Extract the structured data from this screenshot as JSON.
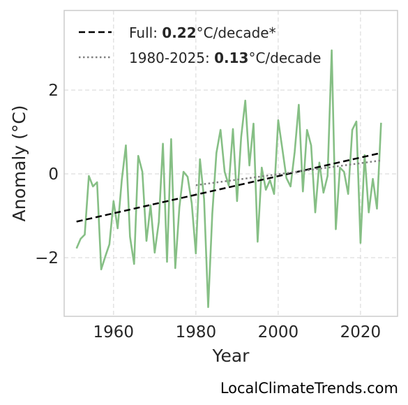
{
  "chart_data": {
    "type": "line",
    "xlabel": "Year",
    "ylabel": "Anomaly (°C)",
    "xlim": [
      1948,
      2029
    ],
    "ylim": [
      -3.4,
      3.9
    ],
    "xticks": [
      1960,
      1980,
      2000,
      2020
    ],
    "yticks": [
      -2,
      0,
      2
    ],
    "ytick_labels": [
      "−2",
      "0",
      "2"
    ],
    "grid": true,
    "legend_position": "top-left",
    "series": [
      {
        "x": [
          1951,
          1952,
          1953,
          1954,
          1955,
          1956,
          1957,
          1958,
          1959,
          1960,
          1961,
          1962,
          1963,
          1964,
          1965,
          1966,
          1967,
          1968,
          1969,
          1970,
          1971,
          1972,
          1973,
          1974,
          1975,
          1976,
          1977,
          1978,
          1979,
          1980,
          1981,
          1982,
          1983,
          1984,
          1985,
          1986,
          1987,
          1988,
          1989,
          1990,
          1991,
          1992,
          1993,
          1994,
          1995,
          1996,
          1997,
          1998,
          1999,
          2000,
          2001,
          2002,
          2003,
          2004,
          2005,
          2006,
          2007,
          2008,
          2009,
          2010,
          2011,
          2012,
          2013,
          2014,
          2015,
          2016,
          2017,
          2018,
          2019,
          2020,
          2021,
          2022,
          2023,
          2024,
          2025
        ],
        "values": [
          -1.78,
          -1.55,
          -1.45,
          -0.05,
          -0.3,
          -0.2,
          -2.28,
          -1.97,
          -1.68,
          -0.65,
          -1.3,
          -0.15,
          0.68,
          -1.5,
          -2.15,
          0.43,
          0.05,
          -1.6,
          -0.75,
          -1.88,
          -1.15,
          0.72,
          -2.1,
          0.83,
          -2.25,
          -0.8,
          0.05,
          -0.07,
          -0.7,
          -1.9,
          0.35,
          -0.6,
          -3.18,
          -0.95,
          0.5,
          1.05,
          0.05,
          -0.28,
          1.07,
          -0.65,
          0.88,
          1.75,
          0.2,
          1.2,
          -1.62,
          0.15,
          -0.38,
          -0.15,
          -0.48,
          1.28,
          0.6,
          -0.1,
          -0.3,
          0.52,
          1.65,
          -0.42,
          1.05,
          0.68,
          -0.92,
          0.27,
          -0.45,
          -0.05,
          2.95,
          -1.32,
          0.15,
          0.05,
          -0.48,
          1.05,
          1.25,
          -1.65,
          0.45,
          -0.92,
          -0.12,
          -0.83,
          1.22
        ],
        "color": "#86bf85"
      }
    ],
    "trend_lines": [
      {
        "label_prefix": "Full: ",
        "label_value": "0.22",
        "label_suffix": "°C/decade*",
        "x": [
          1951,
          2025
        ],
        "y": [
          -1.14,
          0.5
        ],
        "style": "dashed",
        "color": "#000000"
      },
      {
        "label_prefix": "1980-2025: ",
        "label_value": "0.13",
        "label_suffix": "°C/decade",
        "x": [
          1980,
          2025
        ],
        "y": [
          -0.27,
          0.32
        ],
        "style": "dotted",
        "color": "#808080"
      }
    ]
  },
  "watermark": "LocalClimateTrends.com"
}
